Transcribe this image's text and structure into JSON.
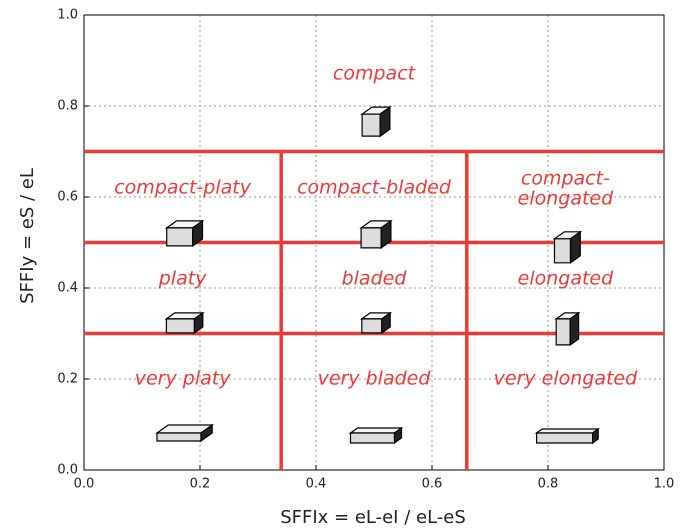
{
  "chart_data": {
    "type": "regions",
    "xlabel": "SFFIx = eL-eI / eL-eS",
    "ylabel": "SFFIy = eS / eL",
    "xlim": [
      0,
      1
    ],
    "ylim": [
      0,
      1
    ],
    "xticks": [
      {
        "value": 0,
        "label": "0.0"
      },
      0.2,
      0.4,
      0.6,
      0.8,
      {
        "value": 1,
        "label": "1.0"
      }
    ],
    "yticks": [
      {
        "value": 0,
        "label": "0.0"
      },
      0.2,
      0.4,
      0.6,
      0.8,
      {
        "value": 1,
        "label": "1.0"
      }
    ],
    "grid": true,
    "color": "#ee3a36",
    "boundaries": [
      {
        "x": [
          0,
          1
        ],
        "y": [
          0.7,
          0.7
        ]
      },
      {
        "x": [
          0,
          1
        ],
        "y": [
          0.5,
          0.5
        ]
      },
      {
        "x": [
          0,
          1
        ],
        "y": [
          0.3,
          0.3
        ]
      },
      {
        "x": [
          0.34,
          0.34
        ],
        "y": [
          0,
          0.7
        ]
      },
      {
        "x": [
          0.66,
          0.66
        ],
        "y": [
          0,
          0.7
        ]
      }
    ],
    "regions": [
      {
        "lines": [
          "compact"
        ],
        "x": 0.5,
        "y": 0.87
      },
      {
        "lines": [
          "compact-platy"
        ],
        "x": 0.17,
        "y": 0.62
      },
      {
        "lines": [
          "compact-bladed"
        ],
        "x": 0.5,
        "y": 0.62
      },
      {
        "lines": [
          "compact-",
          "elongated"
        ],
        "x": 0.83,
        "y": 0.64
      },
      {
        "lines": [
          "platy"
        ],
        "x": 0.17,
        "y": 0.42
      },
      {
        "lines": [
          "bladed"
        ],
        "x": 0.5,
        "y": 0.42
      },
      {
        "lines": [
          "elongated"
        ],
        "x": 0.83,
        "y": 0.42
      },
      {
        "lines": [
          "very platy"
        ],
        "x": 0.17,
        "y": 0.2
      },
      {
        "lines": [
          "very bladed"
        ],
        "x": 0.5,
        "y": 0.2
      },
      {
        "lines": [
          "very elongated"
        ],
        "x": 0.83,
        "y": 0.2
      }
    ]
  }
}
